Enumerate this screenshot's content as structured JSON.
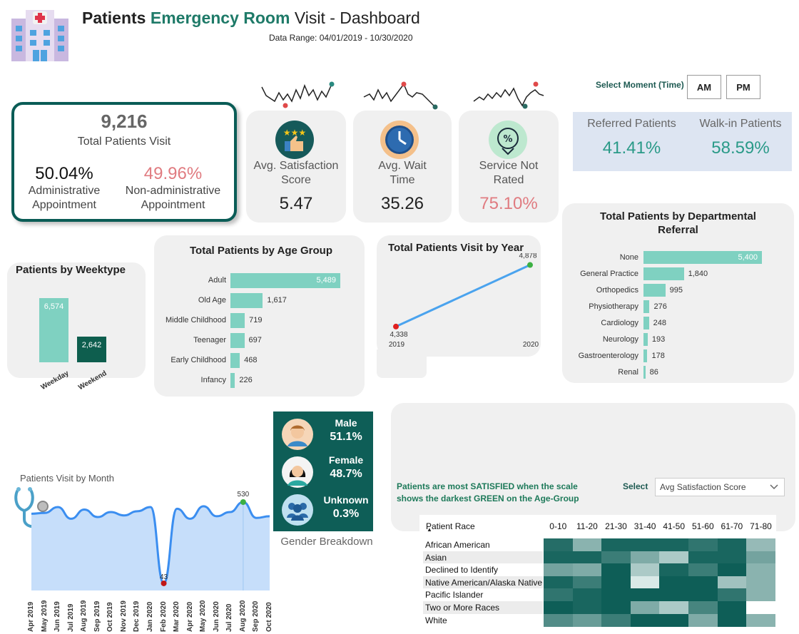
{
  "header": {
    "title_part1": "Patients ",
    "title_part2": "Emergency Room",
    "title_part3": " Visit - Dashboard",
    "date_range": "Data Range: 04/01/2019 - 10/30/2020"
  },
  "colors": {
    "teal_dark": "#0a5c56",
    "teal_light": "#7fd1c1",
    "pink": "#e07b80",
    "title_green": "#1e7a68"
  },
  "total": {
    "value": "9,216",
    "label": "Total Patients Visit",
    "admin_pct": "50.04%",
    "admin_label_1": "Administrative",
    "admin_label_2": "Appointment",
    "nonadmin_pct": "49.96%",
    "nonadmin_label_1": "Non-administrative",
    "nonadmin_label_2": "Appointment"
  },
  "kpis": [
    {
      "label_1": "Avg. Satisfaction",
      "label_2": "Score",
      "value": "5.47",
      "icon": "thumbs-up-stars-icon"
    },
    {
      "label_1": "Avg. Wait",
      "label_2": "Time",
      "value": "35.26",
      "icon": "clock-icon"
    },
    {
      "label_1": "Service Not",
      "label_2": "Rated",
      "value": "75.10%",
      "icon": "discount-icon"
    }
  ],
  "moment": {
    "label": "Select Moment (Time)",
    "am": "AM",
    "pm": "PM"
  },
  "referral_split": {
    "referred_label": "Referred Patients",
    "referred_value": "41.41%",
    "walkin_label": "Walk-in Patients",
    "walkin_value": "58.59%"
  },
  "gender": {
    "male_label": "Male",
    "male_value": "51.1%",
    "female_label": "Female",
    "female_value": "48.7%",
    "unknown_label": "Unknown",
    "unknown_value": "0.3%",
    "caption": "Gender Breakdown"
  },
  "heatmap_note": {
    "text_1": "Patients are most SATISFIED when the scale",
    "text_2": "shows the darkest GREEN on the Age-Group",
    "select_label": "Select",
    "select_value": "Avg Satisfaction Score"
  },
  "chart_data": [
    {
      "type": "bar",
      "title": "Patients by Weektype",
      "categories": [
        "Weekday",
        "Weekend"
      ],
      "values": [
        6574,
        2642
      ],
      "value_labels": [
        "6,574",
        "2,642"
      ]
    },
    {
      "type": "bar",
      "orientation": "horizontal",
      "title": "Total Patients by Age Group",
      "categories": [
        "Adult",
        "Old Age",
        "Middle Childhood",
        "Teenager",
        "Early Childhood",
        "Infancy"
      ],
      "values": [
        5489,
        1617,
        719,
        697,
        468,
        226
      ],
      "value_labels": [
        "5,489",
        "1,617",
        "719",
        "697",
        "468",
        "226"
      ]
    },
    {
      "type": "line",
      "title": "Total Patients Visit by Year",
      "x": [
        "2019",
        "2020"
      ],
      "values": [
        4338,
        4878
      ],
      "value_labels": [
        "4,338",
        "4,878"
      ]
    },
    {
      "type": "bar",
      "orientation": "horizontal",
      "title": "Total Patients by Departmental Referral",
      "categories": [
        "None",
        "General Practice",
        "Orthopedics",
        "Physiotherapy",
        "Cardiology",
        "Neurology",
        "Gastroenterology",
        "Renal"
      ],
      "values": [
        5400,
        1840,
        995,
        276,
        248,
        193,
        178,
        86
      ],
      "value_labels": [
        "5,400",
        "1,840",
        "995",
        "276",
        "248",
        "193",
        "178",
        "86"
      ]
    },
    {
      "type": "area",
      "title": "Patients Visit by Month",
      "x": [
        "Apr 2019",
        "May 2019",
        "Jun 2019",
        "Jul 2019",
        "Aug 2019",
        "Sep 2019",
        "Oct 2019",
        "Nov 2019",
        "Dec 2019",
        "Jan 2020",
        "Feb 2020",
        "Mar 2020",
        "Apr 2020",
        "May 2020",
        "Jun 2020",
        "Jul 2020",
        "Aug 2020",
        "Sep 2020",
        "Oct 2020"
      ],
      "values": [
        460,
        465,
        500,
        430,
        485,
        440,
        470,
        450,
        475,
        500,
        43,
        490,
        430,
        505,
        445,
        470,
        530,
        435,
        445
      ],
      "min_label": "43",
      "max_label": "530"
    },
    {
      "type": "heatmap",
      "row_header": "Patient Race",
      "columns": [
        "0-10",
        "11-20",
        "21-30",
        "31-40",
        "41-50",
        "51-60",
        "61-70",
        "71-80"
      ],
      "rows": [
        "African American",
        "Asian",
        "Declined to Identify",
        "Native American/Alaska Native",
        "Pacific Islander",
        "Two or More Races",
        "White"
      ],
      "values": [
        [
          0.9,
          0.45,
          0.95,
          0.95,
          0.95,
          0.85,
          0.95,
          0.4
        ],
        [
          0.95,
          0.95,
          0.8,
          0.5,
          0.3,
          0.95,
          0.95,
          0.55
        ],
        [
          0.55,
          0.5,
          1.0,
          0.3,
          0.95,
          0.8,
          1.0,
          0.45
        ],
        [
          0.95,
          0.8,
          1.0,
          0.1,
          1.0,
          1.0,
          0.35,
          0.45
        ],
        [
          0.85,
          0.95,
          1.0,
          1.0,
          1.0,
          1.0,
          0.85,
          0.45
        ],
        [
          1.0,
          0.95,
          1.0,
          0.5,
          0.3,
          0.75,
          1.0,
          0.0
        ],
        [
          0.7,
          0.6,
          0.8,
          1.0,
          1.0,
          0.5,
          1.0,
          0.45
        ]
      ]
    }
  ]
}
